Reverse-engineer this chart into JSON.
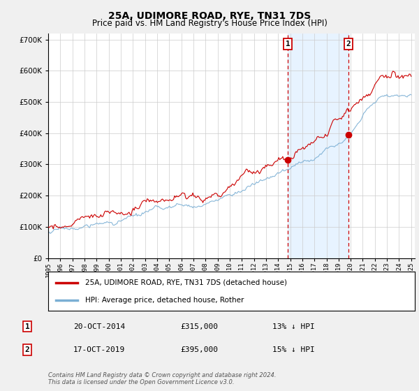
{
  "title": "25A, UDIMORE ROAD, RYE, TN31 7DS",
  "subtitle": "Price paid vs. HM Land Registry's House Price Index (HPI)",
  "hpi_label": "HPI: Average price, detached house, Rother",
  "price_label": "25A, UDIMORE ROAD, RYE, TN31 7DS (detached house)",
  "footer_line1": "Contains HM Land Registry data © Crown copyright and database right 2024.",
  "footer_line2": "This data is licensed under the Open Government Licence v3.0.",
  "transaction_1": {
    "date": "20-OCT-2014",
    "price": "£315,000",
    "note": "13% ↓ HPI",
    "label": "1"
  },
  "transaction_2": {
    "date": "17-OCT-2019",
    "price": "£395,000",
    "note": "15% ↓ HPI",
    "label": "2"
  },
  "hpi_color": "#7bafd4",
  "price_color": "#cc0000",
  "background_color": "#f0f0f0",
  "plot_bg_color": "#ffffff",
  "shade_color": "#ddeeff",
  "vline_color": "#cc0000",
  "grid_color": "#cccccc",
  "yticks": [
    0,
    100000,
    200000,
    300000,
    400000,
    500000,
    600000,
    700000
  ],
  "trans1_year": 2014.8,
  "trans2_year": 2019.8,
  "trans1_price_red": 315000,
  "trans2_price_red": 395000,
  "seed": 17
}
